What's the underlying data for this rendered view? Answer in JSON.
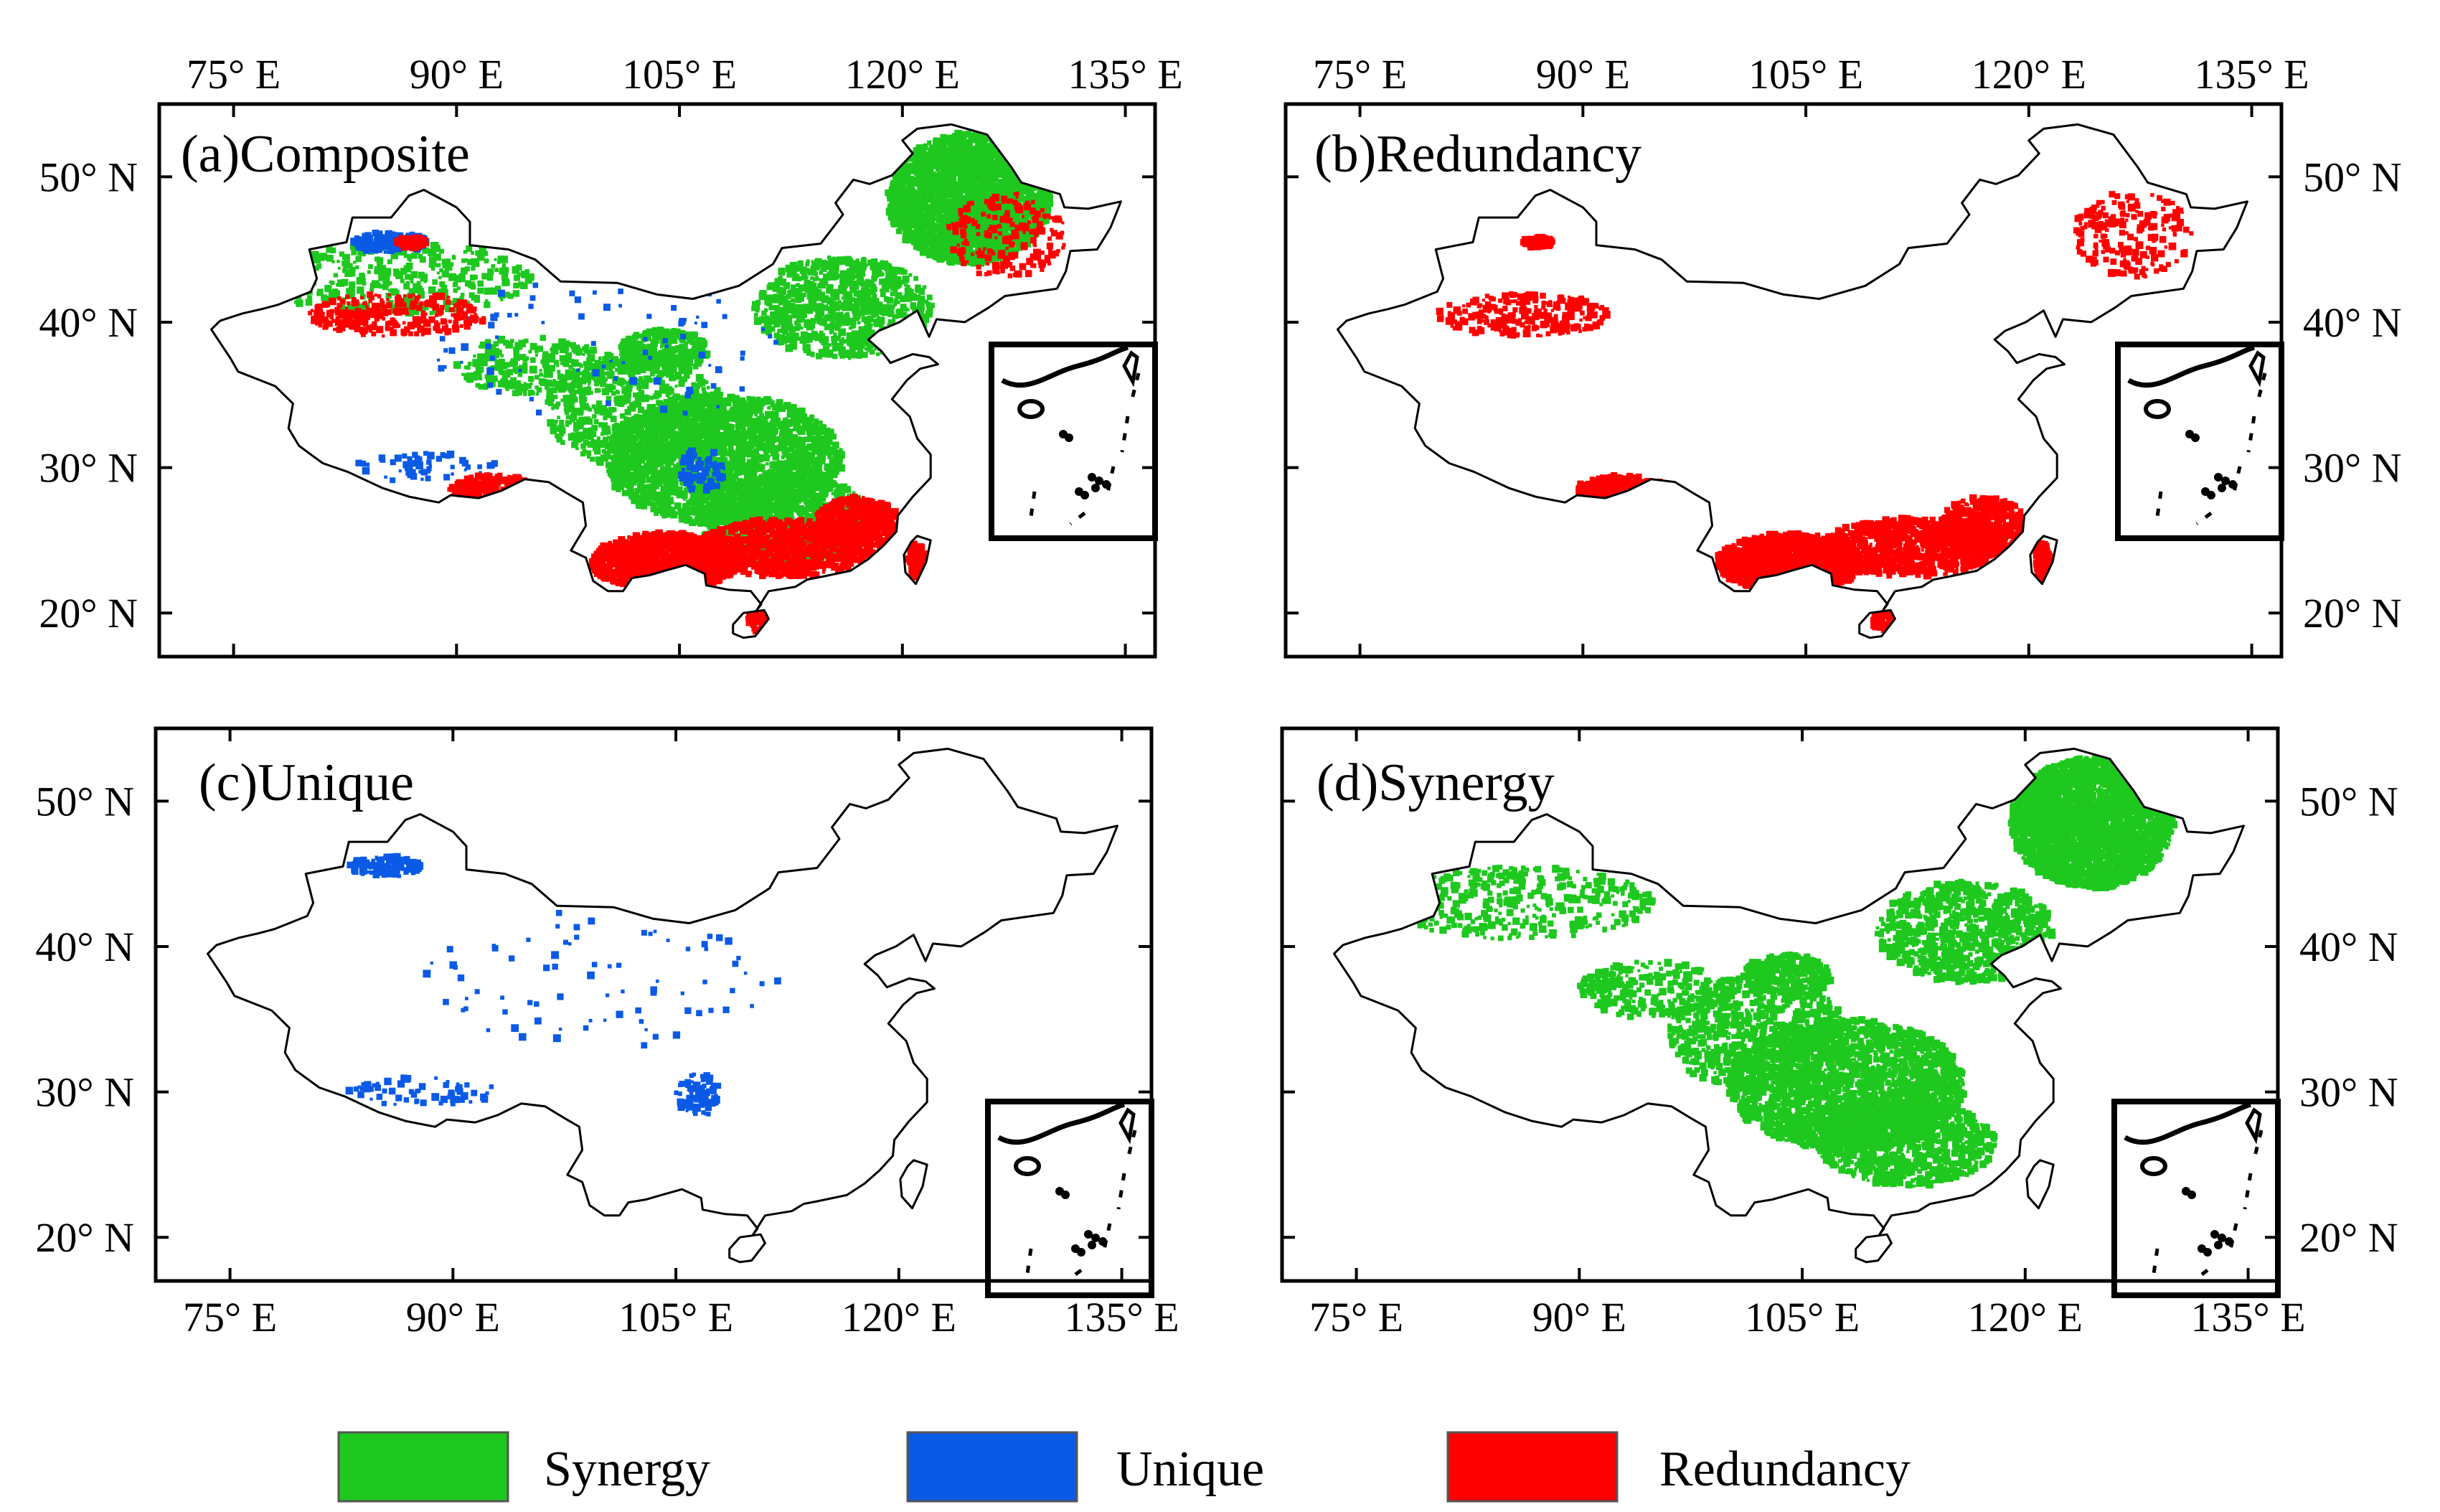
{
  "figure": {
    "panels": [
      {
        "id": "a",
        "label": "(a)Composite",
        "layers": [
          "synergy",
          "unique",
          "redundancy"
        ]
      },
      {
        "id": "b",
        "label": "(b)Redundancy",
        "layers": [
          "redundancy"
        ]
      },
      {
        "id": "c",
        "label": "(c)Unique",
        "layers": [
          "unique"
        ]
      },
      {
        "id": "d",
        "label": "(d)Synergy",
        "layers": [
          "synergy"
        ]
      }
    ],
    "lon_ticks": [
      "75° E",
      "90° E",
      "105° E",
      "120° E",
      "135° E"
    ],
    "lat_ticks": [
      "50° N",
      "40° N",
      "30° N",
      "20° N"
    ],
    "lon_values": [
      75,
      90,
      105,
      120,
      135
    ],
    "lat_values": [
      50,
      40,
      30,
      20
    ],
    "lon_range": [
      70,
      137
    ],
    "lat_range": [
      17,
      55
    ],
    "inset": "south-china-sea-islands",
    "legend": [
      {
        "key": "synergy",
        "label": "Synergy",
        "color": "#1ec81e"
      },
      {
        "key": "unique",
        "label": "Unique",
        "color": "#0a5ae6"
      },
      {
        "key": "redundancy",
        "label": "Redundancy",
        "color": "#ff0000"
      }
    ]
  }
}
